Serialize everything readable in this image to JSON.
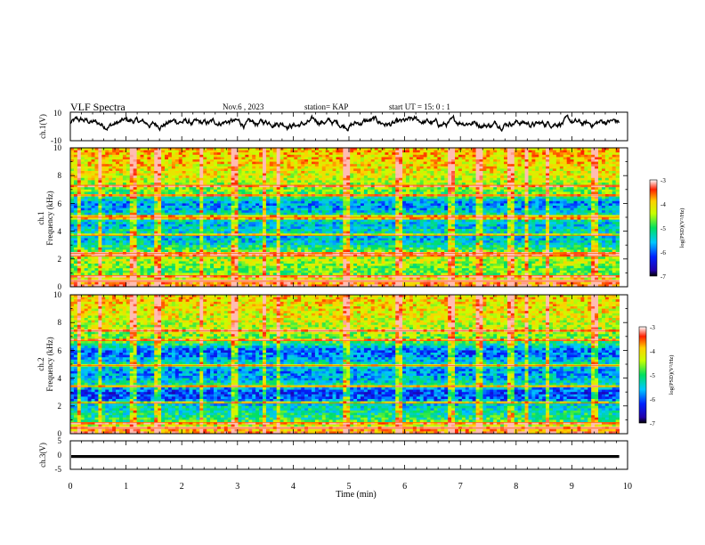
{
  "header": {
    "title": "VLF Spectra",
    "date": "Nov.6 , 2023",
    "station": "station= KAP",
    "start": "start UT = 15: 0 : 1"
  },
  "chart_data": [
    {
      "type": "line",
      "panel": "ch1-waveform",
      "ylabel": "ch.1(V)",
      "ylim": [
        -10,
        10
      ],
      "yticks": [
        "10",
        "-10"
      ],
      "xlim": [
        0,
        10
      ],
      "line_color": "#000000",
      "description_values": {
        "typical_center": 2.5,
        "typical_amplitude": 4
      }
    },
    {
      "type": "heatmap",
      "panel": "ch1-spectrogram",
      "ylabel": "ch.1",
      "ylabel2": "Frequency (kHz)",
      "ylim": [
        0,
        10
      ],
      "yticks": [
        "0",
        "2",
        "4",
        "6",
        "8",
        "10"
      ],
      "xlim": [
        0,
        10
      ],
      "data_end_min": 9.85,
      "colorbar": {
        "label": "log(PSD)(V²/Hz)",
        "range": [
          -7,
          -3
        ],
        "ticks": [
          "-3",
          "-4",
          "-5",
          "-6",
          "-7"
        ]
      },
      "band_profile": [
        {
          "f": 0.0,
          "v": -3.3
        },
        {
          "f": 0.5,
          "v": -4.0
        },
        {
          "f": 1.0,
          "v": -4.8
        },
        {
          "f": 1.5,
          "v": -4.6
        },
        {
          "f": 2.0,
          "v": -4.4
        },
        {
          "f": 2.5,
          "v": -4.6
        },
        {
          "f": 3.0,
          "v": -5.3
        },
        {
          "f": 3.5,
          "v": -5.6
        },
        {
          "f": 4.0,
          "v": -5.3
        },
        {
          "f": 4.5,
          "v": -5.6
        },
        {
          "f": 5.0,
          "v": -5.0
        },
        {
          "f": 5.5,
          "v": -5.6
        },
        {
          "f": 6.0,
          "v": -5.8
        },
        {
          "f": 6.5,
          "v": -5.0
        },
        {
          "f": 7.0,
          "v": -4.6
        },
        {
          "f": 8.0,
          "v": -4.2
        },
        {
          "f": 9.0,
          "v": -4.0
        },
        {
          "f": 10.0,
          "v": -3.9
        }
      ],
      "tone_lines_khz": [
        0.4,
        0.8,
        2.2,
        2.4,
        3.7,
        5.0,
        6.6,
        7.3
      ],
      "burst_times_min": [
        0.15,
        0.55,
        1.12,
        1.58,
        2.35,
        2.95,
        3.48,
        3.75,
        4.95,
        5.9,
        6.85,
        7.35,
        7.9,
        8.2,
        8.55,
        9.4
      ]
    },
    {
      "type": "heatmap",
      "panel": "ch2-spectrogram",
      "ylabel": "ch.2",
      "ylabel2": "Frequency (kHz)",
      "ylim": [
        0,
        10
      ],
      "yticks": [
        "0",
        "2",
        "4",
        "6",
        "8",
        "10"
      ],
      "xlim": [
        0,
        10
      ],
      "data_end_min": 9.85,
      "colorbar": {
        "label": "log(PSD)(V²/Hz)",
        "range": [
          -7,
          -3
        ],
        "ticks": [
          "-3",
          "-4",
          "-5",
          "-6",
          "-7"
        ]
      },
      "band_profile": [
        {
          "f": 0.0,
          "v": -3.4
        },
        {
          "f": 0.5,
          "v": -4.2
        },
        {
          "f": 1.0,
          "v": -5.0
        },
        {
          "f": 1.5,
          "v": -5.2
        },
        {
          "f": 2.0,
          "v": -5.4
        },
        {
          "f": 2.5,
          "v": -6.0
        },
        {
          "f": 3.0,
          "v": -6.2
        },
        {
          "f": 3.5,
          "v": -5.2
        },
        {
          "f": 4.0,
          "v": -5.6
        },
        {
          "f": 4.5,
          "v": -5.8
        },
        {
          "f": 5.0,
          "v": -5.2
        },
        {
          "f": 5.5,
          "v": -5.8
        },
        {
          "f": 6.0,
          "v": -6.0
        },
        {
          "f": 6.5,
          "v": -5.0
        },
        {
          "f": 7.0,
          "v": -4.6
        },
        {
          "f": 8.0,
          "v": -4.3
        },
        {
          "f": 9.0,
          "v": -4.1
        },
        {
          "f": 10.0,
          "v": -4.0
        }
      ],
      "tone_lines_khz": [
        0.4,
        0.8,
        2.2,
        3.4,
        4.9,
        6.7,
        7.4
      ],
      "burst_times_min": [
        0.15,
        0.55,
        1.12,
        1.58,
        2.35,
        2.95,
        3.48,
        3.75,
        4.95,
        5.9,
        6.85,
        7.35,
        7.9,
        8.2,
        8.55,
        9.4
      ]
    },
    {
      "type": "line",
      "panel": "ch3-waveform",
      "ylabel": "ch.3(V)",
      "ylim": [
        -5,
        5
      ],
      "yticks": [
        "5",
        "0",
        "-5"
      ],
      "xlim": [
        0,
        10
      ],
      "xlabel": "Time (min)",
      "xticks": [
        "0",
        "1",
        "2",
        "3",
        "4",
        "5",
        "6",
        "7",
        "8",
        "9",
        "10"
      ],
      "level_v": -0.5,
      "band_halfwidth_v": 0.5
    }
  ]
}
